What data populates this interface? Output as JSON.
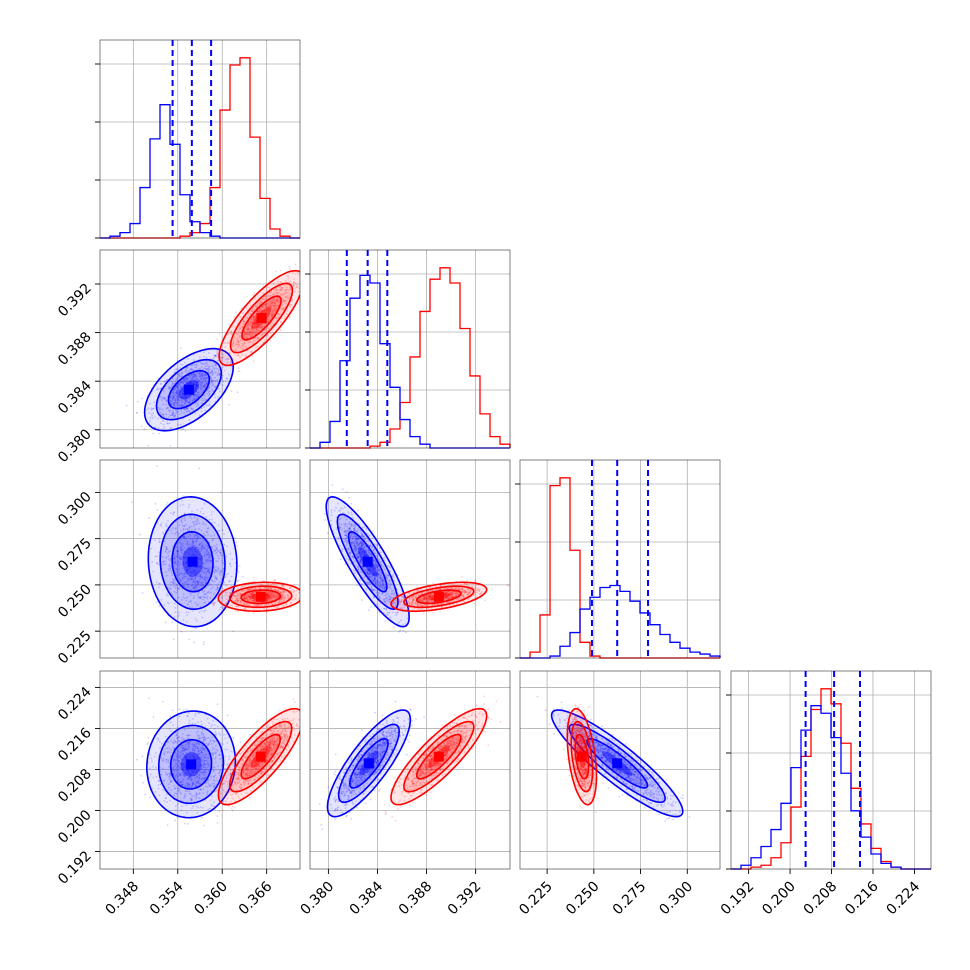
{
  "chart_data": {
    "type": "scatter",
    "variant": "corner-plot",
    "grid": true,
    "series": [
      {
        "color": "#0000ff",
        "means": [
          0.356,
          0.3835,
          0.263,
          0.209
        ],
        "quantile_lines": [
          [
            0.3533,
            0.3559,
            0.3585
          ],
          [
            0.3815,
            0.3832,
            0.3848
          ],
          [
            0.249,
            0.2625,
            0.279
          ],
          [
            0.203,
            0.2085,
            0.2135
          ]
        ]
      },
      {
        "color": "#ff0000",
        "means": [
          0.365,
          0.389,
          0.244,
          0.2105
        ]
      }
    ],
    "parameters": [
      {
        "range": [
          0.3435,
          0.3705
        ],
        "ticks": [
          "0.348",
          "0.354",
          "0.360",
          "0.366"
        ]
      },
      {
        "range": [
          0.3785,
          0.3948
        ],
        "ticks": [
          "0.380",
          "0.384",
          "0.388",
          "0.392"
        ]
      },
      {
        "range": [
          0.2105,
          0.3175
        ],
        "ticks": [
          "0.225",
          "0.250",
          "0.275",
          "0.300"
        ]
      },
      {
        "range": [
          0.1886,
          0.2272
        ],
        "ticks": [
          "0.192",
          "0.200",
          "0.208",
          "0.216",
          "0.224"
        ]
      }
    ],
    "histograms": [
      {
        "edges": [
          0.3435,
          0.3705
        ],
        "blue": [
          0,
          1,
          3,
          8,
          28,
          55,
          74,
          52,
          24,
          9,
          3,
          1,
          0,
          0,
          0,
          0,
          0,
          0,
          0,
          0
        ],
        "red": [
          0,
          0,
          0,
          0,
          0,
          0,
          0,
          0,
          1,
          3,
          8,
          28,
          71,
          96,
          100,
          56,
          22,
          5,
          1,
          0
        ]
      },
      {
        "edges": [
          0.3785,
          0.3948
        ],
        "blue": [
          0,
          3,
          14,
          46,
          79,
          91,
          87,
          55,
          32,
          15,
          6,
          2,
          0,
          0,
          0,
          0,
          0,
          0,
          0,
          0
        ],
        "red": [
          0,
          0,
          0,
          0,
          0,
          0,
          1,
          3,
          10,
          24,
          48,
          72,
          89,
          95,
          87,
          63,
          38,
          18,
          6,
          2
        ]
      },
      {
        "edges": [
          0.2105,
          0.3175
        ],
        "blue": [
          0,
          0,
          0,
          1,
          6,
          13,
          25,
          31,
          36,
          37,
          34,
          29,
          23,
          17,
          12,
          8,
          5,
          3,
          2,
          1
        ],
        "red": [
          0,
          3,
          22,
          88,
          92,
          55,
          8,
          1,
          0,
          0,
          0,
          0,
          0,
          0,
          0,
          0,
          0,
          0,
          0,
          0
        ]
      },
      {
        "edges": [
          0.1886,
          0.2272
        ],
        "blue": [
          0,
          2,
          6,
          12,
          21,
          35,
          54,
          74,
          87,
          83,
          70,
          51,
          31,
          17,
          8,
          3,
          1,
          0,
          0,
          0
        ],
        "red": [
          0,
          0,
          1,
          2,
          6,
          14,
          33,
          60,
          85,
          96,
          88,
          67,
          43,
          24,
          11,
          4,
          1,
          0,
          0,
          0
        ]
      }
    ],
    "contour_levels_2d": [
      {
        "pair": [
          0,
          1
        ],
        "blue": {
          "mean": [
            0.3555,
            0.3833
          ],
          "sd": [
            0.0023,
            0.0013
          ],
          "corr": 0.55
        },
        "red": {
          "mean": [
            0.3653,
            0.3892
          ],
          "sd": [
            0.0022,
            0.0015
          ],
          "corr": 0.8
        }
      },
      {
        "pair": [
          0,
          2
        ],
        "blue": {
          "mean": [
            0.356,
            0.2625
          ],
          "sd": [
            0.0023,
            0.0135
          ],
          "corr": -0.05
        },
        "red": {
          "mean": [
            0.3652,
            0.2436
          ],
          "sd": [
            0.0022,
            0.003
          ],
          "corr": 0.1
        }
      },
      {
        "pair": [
          1,
          2
        ],
        "blue": {
          "mean": [
            0.3832,
            0.2625
          ],
          "sd": [
            0.0013,
            0.0135
          ],
          "corr": -0.85
        },
        "red": {
          "mean": [
            0.389,
            0.2436
          ],
          "sd": [
            0.0015,
            0.003
          ],
          "corr": 0.5
        }
      },
      {
        "pair": [
          0,
          3
        ],
        "blue": {
          "mean": [
            0.3558,
            0.209
          ],
          "sd": [
            0.0023,
            0.004
          ],
          "corr": 0.05
        },
        "red": {
          "mean": [
            0.3652,
            0.2105
          ],
          "sd": [
            0.0022,
            0.0036
          ],
          "corr": 0.8
        }
      },
      {
        "pair": [
          1,
          3
        ],
        "blue": {
          "mean": [
            0.3833,
            0.2092
          ],
          "sd": [
            0.0013,
            0.004
          ],
          "corr": 0.82
        },
        "red": {
          "mean": [
            0.389,
            0.2105
          ],
          "sd": [
            0.0015,
            0.0036
          ],
          "corr": 0.85
        }
      },
      {
        "pair": [
          2,
          3
        ],
        "blue": {
          "mean": [
            0.2625,
            0.2092
          ],
          "sd": [
            0.0135,
            0.004
          ],
          "corr": -0.9
        },
        "red": {
          "mean": [
            0.2436,
            0.2105
          ],
          "sd": [
            0.003,
            0.0036
          ],
          "corr": -0.4
        }
      }
    ]
  }
}
